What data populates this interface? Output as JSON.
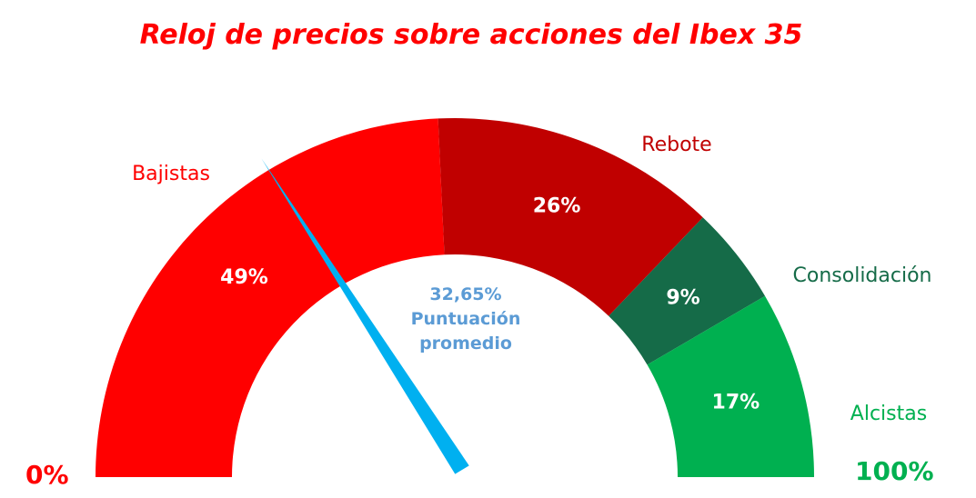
{
  "chart_data": {
    "type": "gauge",
    "title": "Reloj de precios sobre acciones del Ibex 35",
    "categories": [
      "Bajistas",
      "Rebote",
      "Consolidación",
      "Alcistas"
    ],
    "values": [
      49,
      26,
      9,
      17
    ],
    "value_labels": [
      "49%",
      "26%",
      "9%",
      "17%"
    ],
    "colors": [
      "#ff0000",
      "#c00000",
      "#156b48",
      "#00b050"
    ],
    "pointer": {
      "value": 32.65,
      "label": "32,65%",
      "caption_line1": "Puntuación",
      "caption_line2": "promedio",
      "color": "#00b0f0",
      "text_color": "#5b9bd5"
    },
    "range_min": 0,
    "range_max": 100,
    "min_label": "0%",
    "max_label": "100%",
    "min_label_color": "#ff0000",
    "max_label_color": "#00b050",
    "title_color": "#ff0000"
  }
}
